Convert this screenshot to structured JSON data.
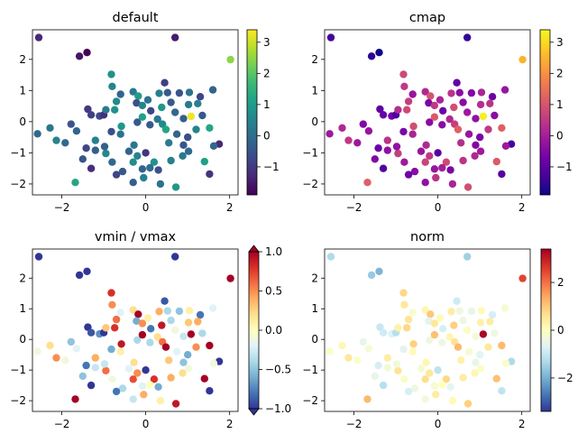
{
  "chart_data": [
    {
      "type": "scatter",
      "title": "default",
      "cmap": "viridis",
      "xlim": [
        -2.7,
        2.2
      ],
      "ylim": [
        -2.35,
        2.95
      ],
      "xticks": [
        -2,
        0,
        2
      ],
      "yticks": [
        -2,
        -1,
        0,
        1,
        2
      ],
      "color_range": [
        -1.9,
        3.4
      ],
      "colorbar_ticks": [
        -1,
        0,
        1,
        2,
        3
      ],
      "colorbar_extend": "neither",
      "grid": false
    },
    {
      "type": "scatter",
      "title": "cmap",
      "cmap": "plasma",
      "xlim": [
        -2.7,
        2.2
      ],
      "ylim": [
        -2.35,
        2.95
      ],
      "xticks": [
        -2,
        0,
        2
      ],
      "yticks": [
        -2,
        -1,
        0,
        1,
        2
      ],
      "color_range": [
        -1.9,
        3.4
      ],
      "colorbar_ticks": [
        -1,
        0,
        1,
        2,
        3
      ],
      "colorbar_extend": "neither",
      "grid": false
    },
    {
      "type": "scatter",
      "title": "vmin / vmax",
      "cmap": "RdYlBu_r",
      "xlim": [
        -2.7,
        2.2
      ],
      "ylim": [
        -2.35,
        2.95
      ],
      "xticks": [
        -2,
        0,
        2
      ],
      "yticks": [
        -2,
        -1,
        0,
        1,
        2
      ],
      "color_range": [
        -1.0,
        1.0
      ],
      "colorbar_ticks": [
        -1.0,
        -0.5,
        0.0,
        0.5,
        1.0
      ],
      "colorbar_tick_labels": [
        "−1.0",
        "−0.5",
        "0.0",
        "0.5",
        "1.0"
      ],
      "colorbar_extend": "both",
      "grid": false
    },
    {
      "type": "scatter",
      "title": "norm",
      "cmap": "RdYlBu_r",
      "xlim": [
        -2.7,
        2.2
      ],
      "ylim": [
        -2.35,
        2.95
      ],
      "xticks": [
        -2,
        0,
        2
      ],
      "yticks": [
        -2,
        -1,
        0,
        1,
        2
      ],
      "color_range": [
        -3.4,
        3.4
      ],
      "colorbar_ticks": [
        -2,
        0,
        2
      ],
      "colorbar_extend": "neither",
      "grid": false
    }
  ],
  "points": [
    {
      "x": -2.55,
      "y": 2.7,
      "c": -1.3
    },
    {
      "x": -1.58,
      "y": 2.1,
      "c": -1.6
    },
    {
      "x": -1.4,
      "y": 2.22,
      "c": -1.9
    },
    {
      "x": 0.7,
      "y": 2.7,
      "c": -1.5
    },
    {
      "x": 2.02,
      "y": 1.99,
      "c": 2.5
    },
    {
      "x": -2.58,
      "y": -0.39,
      "c": -0.1
    },
    {
      "x": -2.13,
      "y": -0.6,
      "c": 0.5
    },
    {
      "x": -1.68,
      "y": -1.95,
      "c": 1.2
    },
    {
      "x": -1.1,
      "y": 0.18,
      "c": -0.7
    },
    {
      "x": -0.82,
      "y": 1.52,
      "c": 0.8
    },
    {
      "x": -0.8,
      "y": 1.13,
      "c": 0.5
    },
    {
      "x": -0.3,
      "y": 0.96,
      "c": 0.2
    },
    {
      "x": -0.18,
      "y": 0.82,
      "c": 1.0
    },
    {
      "x": 0.32,
      "y": 0.91,
      "c": 0.4
    },
    {
      "x": 0.52,
      "y": 0.93,
      "c": -0.4
    },
    {
      "x": 0.8,
      "y": 0.92,
      "c": -0.5
    },
    {
      "x": 1.04,
      "y": 0.94,
      "c": 0.1
    },
    {
      "x": 1.3,
      "y": 0.8,
      "c": -0.8
    },
    {
      "x": 1.6,
      "y": 1.02,
      "c": -0.2
    },
    {
      "x": 1.08,
      "y": 0.17,
      "c": 3.3
    },
    {
      "x": 1.52,
      "y": -0.2,
      "c": 1.2
    },
    {
      "x": 1.75,
      "y": -0.72,
      "c": -1.3
    },
    {
      "x": 1.62,
      "y": -0.78,
      "c": -0.1
    },
    {
      "x": 1.0,
      "y": -0.5,
      "c": -0.6
    },
    {
      "x": 1.4,
      "y": -1.28,
      "c": 1.1
    },
    {
      "x": 1.52,
      "y": -1.68,
      "c": -1.1
    },
    {
      "x": 0.72,
      "y": -2.1,
      "c": 0.9
    },
    {
      "x": 0.35,
      "y": -2.0,
      "c": 0.1
    },
    {
      "x": -0.55,
      "y": -1.6,
      "c": -0.4
    },
    {
      "x": -0.08,
      "y": -1.52,
      "c": -0.2
    },
    {
      "x": -0.7,
      "y": -1.7,
      "c": -0.8
    },
    {
      "x": -1.3,
      "y": -1.5,
      "c": -1.2
    },
    {
      "x": -1.5,
      "y": -1.2,
      "c": -0.5
    },
    {
      "x": -1.2,
      "y": -0.92,
      "c": -0.3
    },
    {
      "x": -1.78,
      "y": -0.08,
      "c": -0.5
    },
    {
      "x": -1.65,
      "y": -0.3,
      "c": -0.2
    },
    {
      "x": -2.28,
      "y": -0.2,
      "c": 0.2
    },
    {
      "x": -1.38,
      "y": 0.4,
      "c": -1.0
    },
    {
      "x": -1.0,
      "y": 0.22,
      "c": -1.2
    },
    {
      "x": -1.3,
      "y": 0.22,
      "c": -0.9
    },
    {
      "x": -0.95,
      "y": 0.38,
      "c": 0.3
    },
    {
      "x": -0.74,
      "y": 0.38,
      "c": 0.8
    },
    {
      "x": -0.7,
      "y": 0.65,
      "c": 0.6
    },
    {
      "x": -0.6,
      "y": 0.88,
      "c": -0.2
    },
    {
      "x": -0.22,
      "y": 0.6,
      "c": -0.6
    },
    {
      "x": -0.08,
      "y": 0.52,
      "c": 0.5
    },
    {
      "x": 0.12,
      "y": 0.35,
      "c": -0.8
    },
    {
      "x": 0.38,
      "y": 0.46,
      "c": 0.9
    },
    {
      "x": 0.6,
      "y": 0.62,
      "c": -0.4
    },
    {
      "x": 0.7,
      "y": 0.3,
      "c": -0.1
    },
    {
      "x": 1.02,
      "y": 0.55,
      "c": 0.3
    },
    {
      "x": 1.24,
      "y": 0.58,
      "c": 0.4
    },
    {
      "x": 0.9,
      "y": 0.1,
      "c": -0.3
    },
    {
      "x": 0.28,
      "y": 0.08,
      "c": 0.2
    },
    {
      "x": 0.1,
      "y": -0.1,
      "c": -0.4
    },
    {
      "x": 0.4,
      "y": -0.08,
      "c": 0.6
    },
    {
      "x": 0.48,
      "y": -0.25,
      "c": 1.2
    },
    {
      "x": 0.74,
      "y": -0.4,
      "c": -0.2
    },
    {
      "x": 0.55,
      "y": -0.68,
      "c": 0.3
    },
    {
      "x": 0.9,
      "y": -0.75,
      "c": -0.5
    },
    {
      "x": 1.02,
      "y": -0.95,
      "c": -0.1
    },
    {
      "x": 0.6,
      "y": -1.25,
      "c": 0.4
    },
    {
      "x": 0.2,
      "y": -1.3,
      "c": 0.8
    },
    {
      "x": 0.0,
      "y": -1.0,
      "c": -1.1
    },
    {
      "x": -0.28,
      "y": -0.75,
      "c": 0.2
    },
    {
      "x": -0.4,
      "y": -0.95,
      "c": -0.2
    },
    {
      "x": -0.2,
      "y": -1.1,
      "c": 0.5
    },
    {
      "x": 0.1,
      "y": -1.48,
      "c": 0.0
    },
    {
      "x": -0.05,
      "y": -1.8,
      "c": 0.4
    },
    {
      "x": -0.3,
      "y": -1.95,
      "c": -0.3
    },
    {
      "x": -0.8,
      "y": -1.3,
      "c": -0.1
    },
    {
      "x": -0.95,
      "y": -1.02,
      "c": 0.6
    },
    {
      "x": -1.42,
      "y": -0.85,
      "c": -0.8
    },
    {
      "x": -0.6,
      "y": -0.4,
      "c": 0.1
    },
    {
      "x": -0.82,
      "y": -0.32,
      "c": -0.6
    },
    {
      "x": -0.58,
      "y": -0.15,
      "c": 0.9
    },
    {
      "x": -0.2,
      "y": -0.02,
      "c": -0.4
    },
    {
      "x": -0.08,
      "y": 0.15,
      "c": 1.1
    },
    {
      "x": 0.05,
      "y": 0.7,
      "c": 0.1
    },
    {
      "x": -1.2,
      "y": -0.6,
      "c": 0.4
    },
    {
      "x": -1.92,
      "y": -0.68,
      "c": -0.1
    },
    {
      "x": -0.98,
      "y": -0.8,
      "c": -0.3
    },
    {
      "x": -0.3,
      "y": -1.3,
      "c": 0.7
    },
    {
      "x": 0.3,
      "y": -1.55,
      "c": -0.6
    },
    {
      "x": 0.88,
      "y": -1.1,
      "c": 0.2
    },
    {
      "x": 1.2,
      "y": -0.25,
      "c": 0.5
    },
    {
      "x": 1.35,
      "y": 0.2,
      "c": -0.4
    },
    {
      "x": 0.45,
      "y": 1.25,
      "c": -0.9
    }
  ]
}
